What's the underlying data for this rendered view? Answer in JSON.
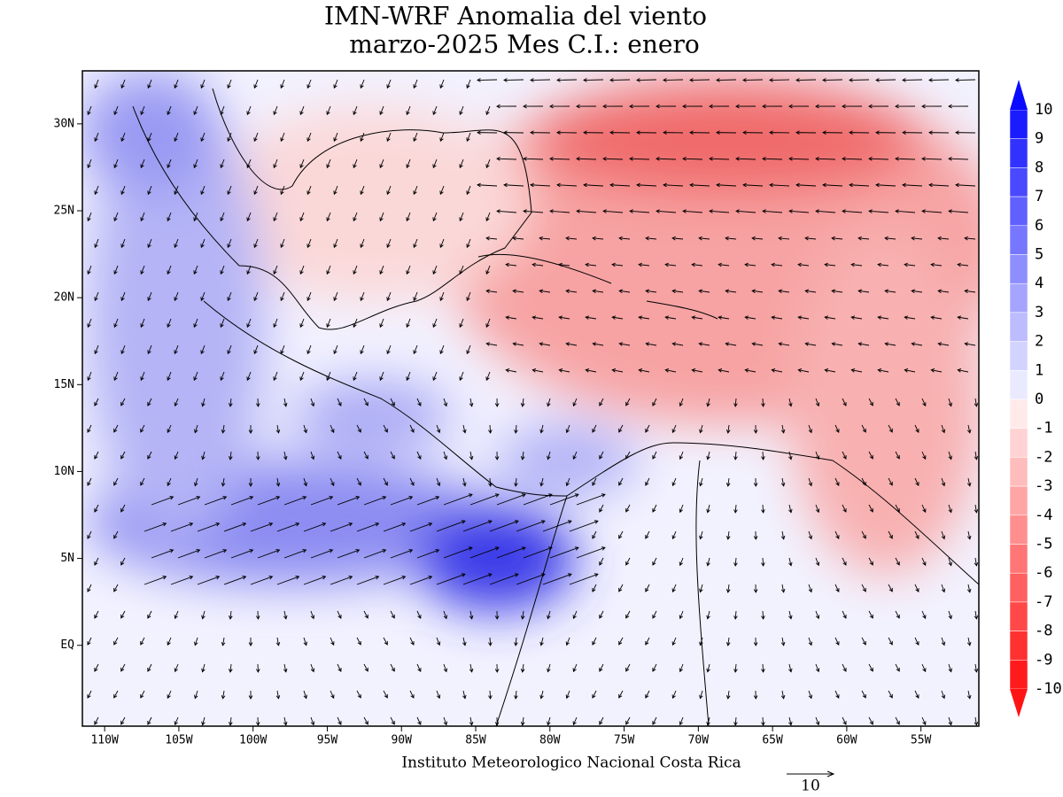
{
  "map": {
    "title": "IMN-WRF Anomalia del viento",
    "subtitle": "marzo-2025 Mes C.I.: enero",
    "footer": "Instituto Meteorologico Nacional Costa Rica",
    "reference_vector": "10",
    "xlim": [
      -111.5,
      -51.1
    ],
    "ylim": [
      -4.65,
      33.05
    ],
    "xticks": [
      {
        "value": -110,
        "label": "110W"
      },
      {
        "value": -105,
        "label": "105W"
      },
      {
        "value": -100,
        "label": "100W"
      },
      {
        "value": -95,
        "label": "95W"
      },
      {
        "value": -90,
        "label": "90W"
      },
      {
        "value": -85,
        "label": "85W"
      },
      {
        "value": -80,
        "label": "80W"
      },
      {
        "value": -75,
        "label": "75W"
      },
      {
        "value": -70,
        "label": "70W"
      },
      {
        "value": -65,
        "label": "65W"
      },
      {
        "value": -60,
        "label": "60W"
      },
      {
        "value": -55,
        "label": "55W"
      }
    ],
    "yticks": [
      {
        "value": 30,
        "label": "30N"
      },
      {
        "value": 25,
        "label": "25N"
      },
      {
        "value": 20,
        "label": "20N"
      },
      {
        "value": 15,
        "label": "15N"
      },
      {
        "value": 10,
        "label": "10N"
      },
      {
        "value": 5,
        "label": "5N"
      },
      {
        "value": 0,
        "label": "EQ"
      }
    ],
    "colorbar": [
      10,
      9,
      8,
      7,
      6,
      5,
      4,
      3,
      2,
      1,
      0,
      -1,
      -2,
      -3,
      -4,
      -5,
      -6,
      -7,
      -8,
      -9,
      -10
    ]
  }
}
